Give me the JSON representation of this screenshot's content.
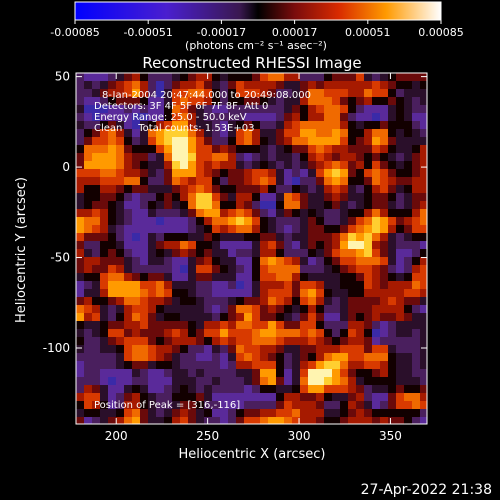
{
  "colorbar": {
    "ticks": [
      "-0.00085",
      "-0.00051",
      "-0.00017",
      "0.00017",
      "0.00051",
      "0.00085"
    ],
    "tick_values": [
      -0.00085,
      -0.00051,
      -0.00017,
      0.00017,
      0.00051,
      0.00085
    ],
    "units": "(photons cm⁻² s⁻¹ asec⁻²)"
  },
  "info": {
    "line1": "8-Jan-2004 20:47:44.000 to 20:49:08.000",
    "line2": "Detectors: 3F 4F 5F 6F 7F 8F, Att 0",
    "line3": "Energy Range: 25.0 - 50.0 keV",
    "line4": "Clean     Total counts: 1.53E+03",
    "peak": "Position of Peak = [316,-116]"
  },
  "timestamp": "27-Apr-2022 21:38",
  "colors": {
    "axis": "#ffffff",
    "background": "#000000"
  },
  "chart_data": {
    "type": "heatmap",
    "title": "Reconstructed RHESSI Image",
    "xlabel": "Heliocentric X (arcsec)",
    "ylabel": "Heliocentric Y (arcsec)",
    "xlim": [
      178,
      370
    ],
    "ylim": [
      -142,
      52
    ],
    "xticks": [
      200,
      250,
      300,
      350
    ],
    "yticks": [
      50,
      0,
      -50,
      -100
    ],
    "colorbar_range": [
      -0.00085,
      0.00085
    ],
    "peak_position": [
      316,
      -116
    ],
    "bright_sources": [
      {
        "x": 252,
        "y": -20,
        "intensity": 0.82
      },
      {
        "x": 238,
        "y": 8,
        "intensity": 0.55
      },
      {
        "x": 288,
        "y": -72,
        "intensity": 0.8
      },
      {
        "x": 316,
        "y": -116,
        "intensity": 1.0
      },
      {
        "x": 322,
        "y": 2,
        "intensity": 0.62
      },
      {
        "x": 336,
        "y": -40,
        "intensity": 0.5
      }
    ]
  }
}
